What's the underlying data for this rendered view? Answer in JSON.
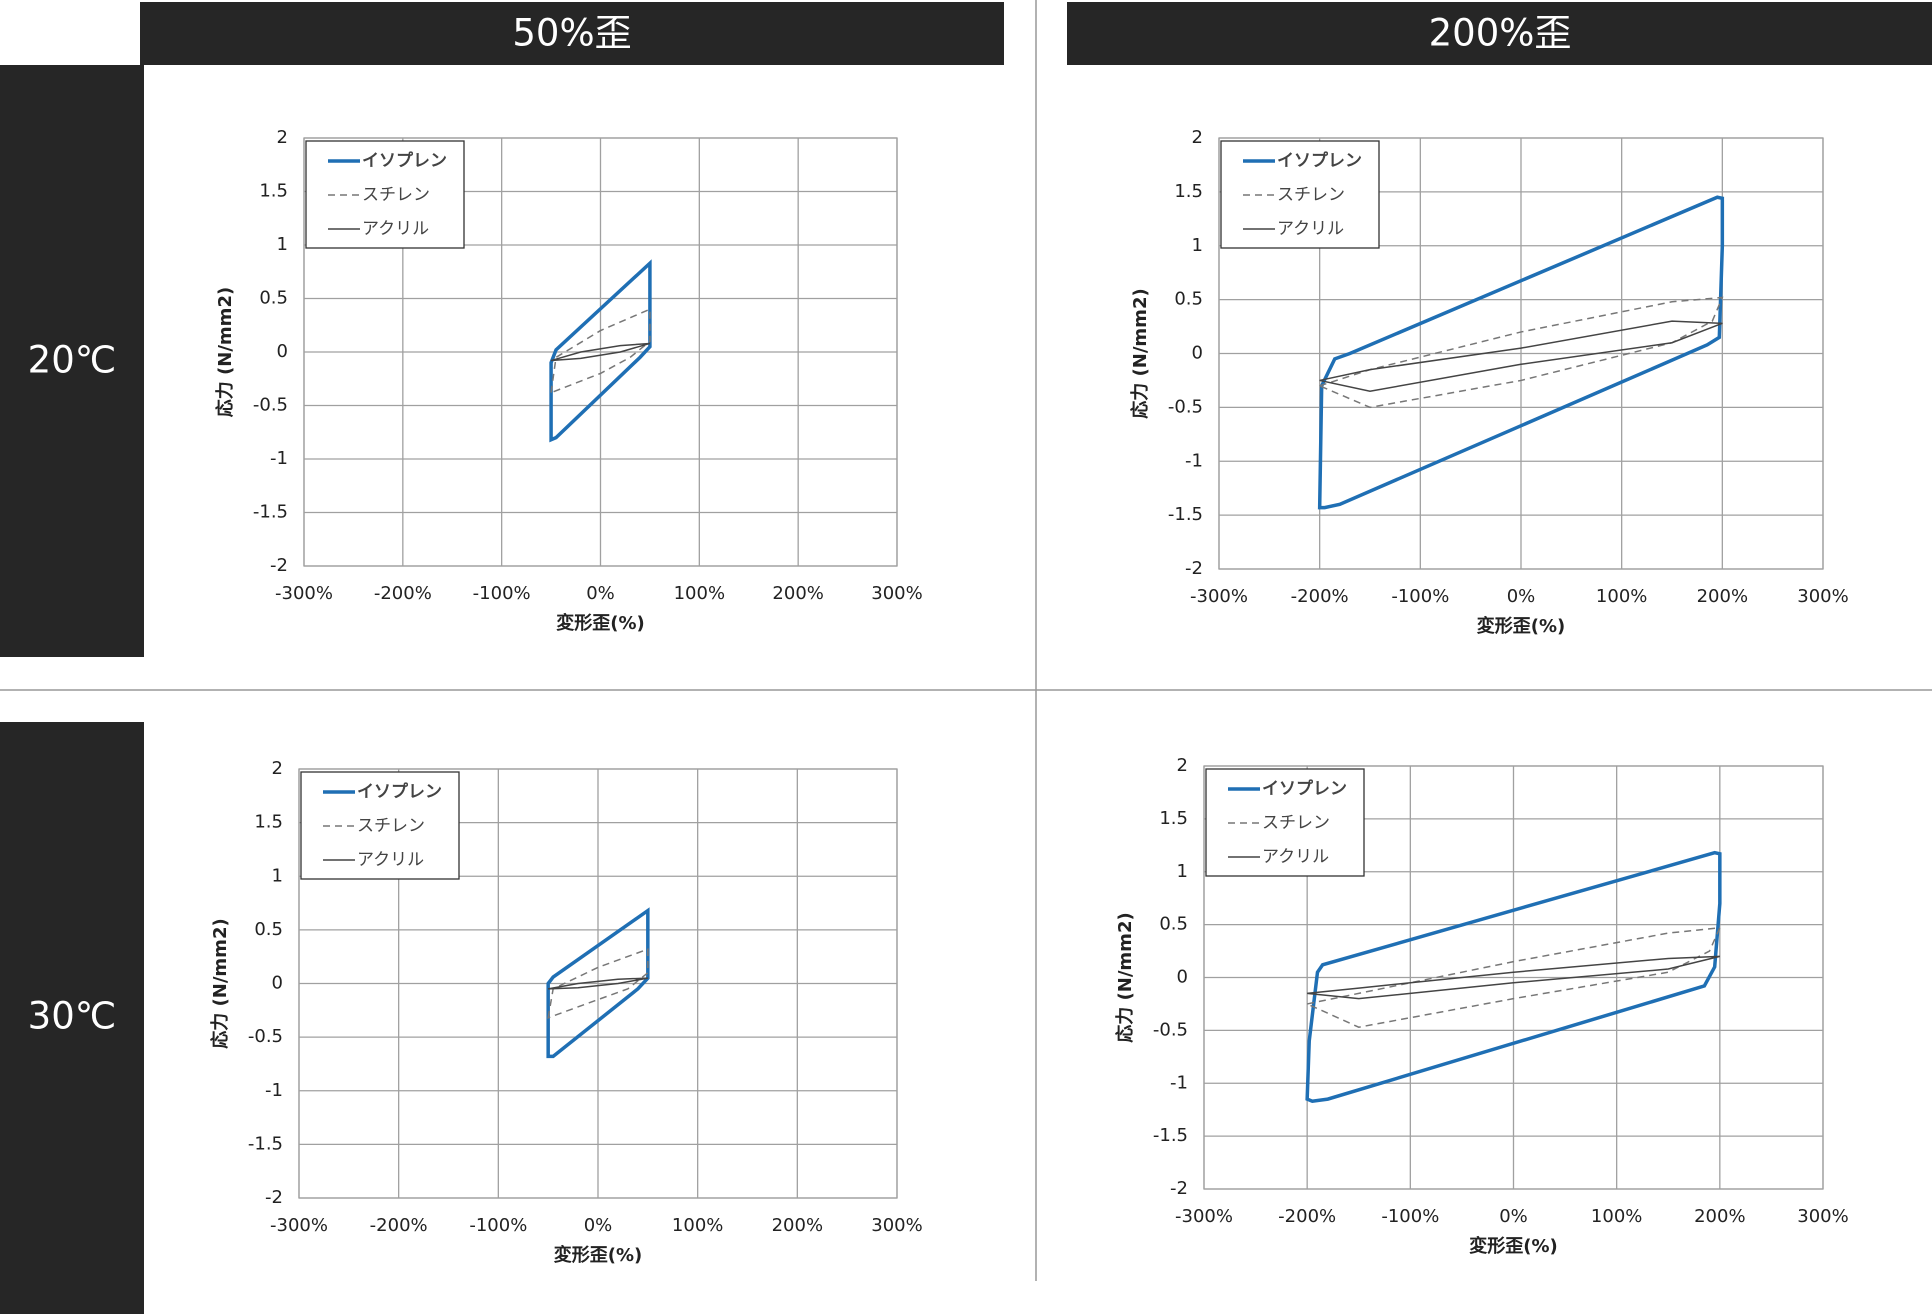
{
  "headers": {
    "columns": [
      "50%歪",
      "200%歪"
    ],
    "rows": [
      "20℃",
      "30℃"
    ]
  },
  "chart_data": [
    {
      "type": "line",
      "x_label": "変形歪(%)",
      "y_label": "応力 (N/mm2)",
      "grid": true,
      "legend": "upper left",
      "xlim": [
        -300,
        300
      ],
      "xticks": [
        {
          "value": -300,
          "label": "-300%"
        },
        {
          "value": -200,
          "label": "-200%"
        },
        {
          "value": -100,
          "label": "-100%"
        },
        {
          "value": 0,
          "label": "0%"
        },
        {
          "value": 100,
          "label": "100%"
        },
        {
          "value": 200,
          "label": "200%"
        },
        {
          "value": 300,
          "label": "300%"
        }
      ],
      "ylim": [
        -2,
        2
      ],
      "yticks": [
        -2,
        -1.5,
        -1,
        -0.5,
        0,
        0.5,
        1,
        1.5,
        2
      ],
      "series": [
        {
          "name": "イソプレン",
          "color": "#1f6fb4",
          "x": [
            -50,
            -50,
            -45,
            50,
            50,
            40,
            -45,
            -50
          ],
          "values": [
            -0.82,
            -0.1,
            0.02,
            0.83,
            0.05,
            -0.05,
            -0.8,
            -0.82
          ]
        },
        {
          "name": "スチレン",
          "color": "#777777",
          "dash": true,
          "x": [
            -50,
            -45,
            0,
            50,
            50,
            30,
            0,
            -50
          ],
          "values": [
            -0.38,
            -0.05,
            0.2,
            0.4,
            0.1,
            -0.05,
            -0.2,
            -0.38
          ]
        },
        {
          "name": "アクリル",
          "color": "#444444",
          "x": [
            -50,
            -20,
            20,
            50,
            20,
            -20,
            -50
          ],
          "values": [
            -0.08,
            0.0,
            0.06,
            0.08,
            0.0,
            -0.06,
            -0.08
          ]
        }
      ]
    },
    {
      "type": "line",
      "x_label": "変形歪(%)",
      "y_label": "応力 (N/mm2)",
      "grid": true,
      "legend": "upper left",
      "xlim": [
        -300,
        300
      ],
      "xticks": [
        {
          "value": -300,
          "label": "-300%"
        },
        {
          "value": -200,
          "label": "-200%"
        },
        {
          "value": -100,
          "label": "-100%"
        },
        {
          "value": 0,
          "label": "0%"
        },
        {
          "value": 100,
          "label": "100%"
        },
        {
          "value": 200,
          "label": "200%"
        },
        {
          "value": 300,
          "label": "300%"
        }
      ],
      "ylim": [
        -2,
        2
      ],
      "yticks": [
        -2,
        -1.5,
        -1,
        -0.5,
        0,
        0.5,
        1,
        1.5,
        2
      ],
      "series": [
        {
          "name": "イソプレン",
          "color": "#1f6fb4",
          "x": [
            -200,
            -198,
            -185,
            -170,
            195,
            200,
            200,
            197,
            185,
            -180,
            -195
          ],
          "values": [
            -1.43,
            -0.3,
            -0.05,
            0.0,
            1.45,
            1.44,
            1.0,
            0.15,
            0.08,
            -1.4,
            -1.43
          ]
        },
        {
          "name": "スチレン",
          "color": "#777777",
          "dash": true,
          "x": [
            -200,
            -150,
            0,
            150,
            200,
            190,
            150,
            0,
            -150,
            -200
          ],
          "values": [
            -0.3,
            -0.15,
            0.2,
            0.48,
            0.52,
            0.3,
            0.1,
            -0.25,
            -0.5,
            -0.3
          ]
        },
        {
          "name": "アクリル",
          "color": "#444444",
          "x": [
            -200,
            -150,
            0,
            150,
            200,
            150,
            0,
            -150,
            -200
          ],
          "values": [
            -0.25,
            -0.15,
            0.05,
            0.3,
            0.28,
            0.1,
            -0.1,
            -0.35,
            -0.25
          ]
        }
      ]
    },
    {
      "type": "line",
      "x_label": "変形歪(%)",
      "y_label": "応力 (N/mm2)",
      "grid": true,
      "legend": "upper left",
      "xlim": [
        -300,
        300
      ],
      "xticks": [
        {
          "value": -300,
          "label": "-300%"
        },
        {
          "value": -200,
          "label": "-200%"
        },
        {
          "value": -100,
          "label": "-100%"
        },
        {
          "value": 0,
          "label": "0%"
        },
        {
          "value": 100,
          "label": "100%"
        },
        {
          "value": 200,
          "label": "200%"
        },
        {
          "value": 300,
          "label": "300%"
        }
      ],
      "ylim": [
        -2,
        2
      ],
      "yticks": [
        -2,
        -1.5,
        -1,
        -0.5,
        0,
        0.5,
        1,
        1.5,
        2
      ],
      "series": [
        {
          "name": "イソプレン",
          "color": "#1f6fb4",
          "x": [
            -50,
            -50,
            -45,
            50,
            50,
            40,
            -45,
            -50
          ],
          "values": [
            -0.68,
            0.0,
            0.06,
            0.68,
            0.05,
            -0.05,
            -0.68,
            -0.68
          ]
        },
        {
          "name": "スチレン",
          "color": "#777777",
          "dash": true,
          "x": [
            -50,
            -45,
            0,
            50,
            50,
            30,
            0,
            -50
          ],
          "values": [
            -0.32,
            -0.05,
            0.15,
            0.32,
            0.1,
            -0.05,
            -0.15,
            -0.32
          ]
        },
        {
          "name": "アクリル",
          "color": "#444444",
          "x": [
            -50,
            -20,
            20,
            50,
            20,
            -20,
            -50
          ],
          "values": [
            -0.05,
            0.0,
            0.04,
            0.05,
            0.0,
            -0.04,
            -0.05
          ]
        }
      ]
    },
    {
      "type": "line",
      "x_label": "変形歪(%)",
      "y_label": "応力 (N/mm2)",
      "grid": true,
      "legend": "upper left",
      "xlim": [
        -300,
        300
      ],
      "xticks": [
        {
          "value": -300,
          "label": "-300%"
        },
        {
          "value": -200,
          "label": "-200%"
        },
        {
          "value": -100,
          "label": "-100%"
        },
        {
          "value": 0,
          "label": "0%"
        },
        {
          "value": 100,
          "label": "100%"
        },
        {
          "value": 200,
          "label": "200%"
        },
        {
          "value": 300,
          "label": "300%"
        }
      ],
      "ylim": [
        -2,
        2
      ],
      "yticks": [
        -2,
        -1.5,
        -1,
        -0.5,
        0,
        0.5,
        1,
        1.5,
        2
      ],
      "series": [
        {
          "name": "イソプレン",
          "color": "#1f6fb4",
          "x": [
            -200,
            -198,
            -190,
            -185,
            195,
            200,
            200,
            195,
            185,
            -180,
            -195
          ],
          "values": [
            -1.15,
            -0.6,
            0.05,
            0.12,
            1.18,
            1.17,
            0.7,
            0.1,
            -0.08,
            -1.15,
            -1.17
          ]
        },
        {
          "name": "スチレン",
          "color": "#777777",
          "dash": true,
          "x": [
            -200,
            -150,
            0,
            150,
            200,
            190,
            150,
            0,
            -150,
            -200
          ],
          "values": [
            -0.25,
            -0.15,
            0.15,
            0.42,
            0.47,
            0.25,
            0.05,
            -0.2,
            -0.47,
            -0.25
          ]
        },
        {
          "name": "アクリル",
          "color": "#444444",
          "x": [
            -200,
            -150,
            0,
            150,
            200,
            150,
            0,
            -150,
            -200
          ],
          "values": [
            -0.15,
            -0.1,
            0.05,
            0.18,
            0.2,
            0.08,
            -0.05,
            -0.2,
            -0.15
          ]
        }
      ]
    }
  ]
}
